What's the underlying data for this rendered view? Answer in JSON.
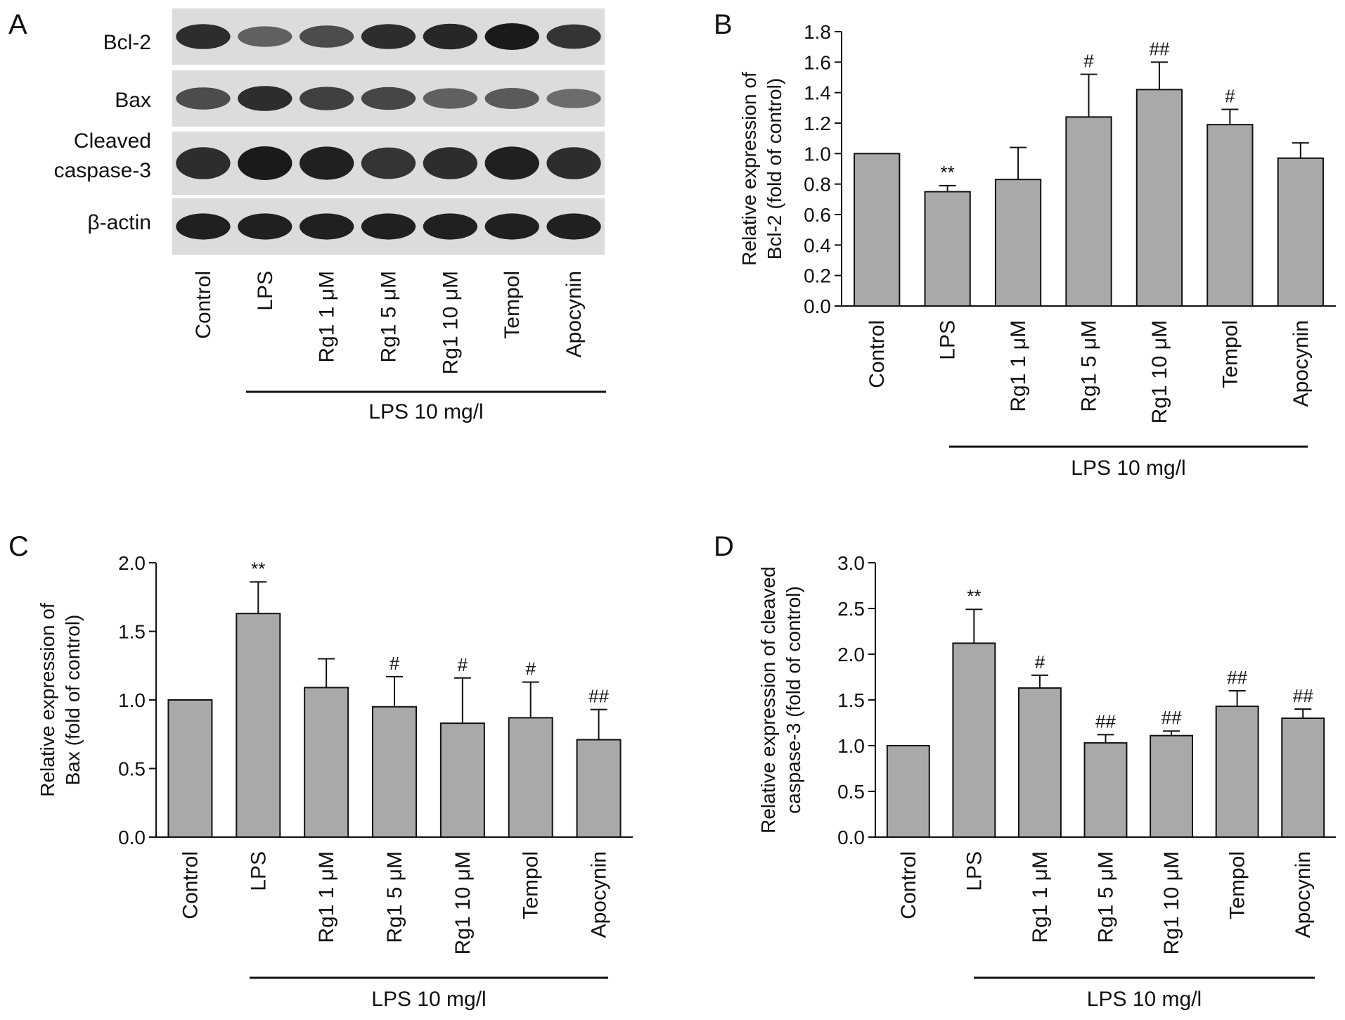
{
  "figure": {
    "colors": {
      "bar": "#a9a9a9",
      "ink": "#111111",
      "blot_bg": "#dcdcdc",
      "band": "#1a1a1a"
    }
  },
  "blot": {
    "panel_letter": "A",
    "row_labels": [
      [
        "Bcl-2"
      ],
      [
        "Bax"
      ],
      [
        "Cleaved",
        "caspase-3"
      ],
      [
        "β-actin"
      ]
    ],
    "lane_labels": [
      "Control",
      "LPS",
      "Rg1 1 μM",
      "Rg1 5 μM",
      "Rg1 10 μM",
      "Tempol",
      "Apocynin"
    ],
    "treatment_label": "LPS 10 mg/l",
    "band_intensity": [
      [
        0.85,
        0.45,
        0.6,
        0.85,
        0.9,
        1.0,
        0.8
      ],
      [
        0.6,
        0.85,
        0.7,
        0.65,
        0.45,
        0.5,
        0.35
      ],
      [
        0.85,
        1.0,
        0.95,
        0.8,
        0.85,
        0.95,
        0.85
      ],
      [
        0.95,
        0.95,
        0.95,
        0.95,
        0.95,
        0.95,
        0.95
      ]
    ]
  },
  "chart_data": [
    {
      "panel_letter": "B",
      "type": "bar",
      "categories": [
        "Control",
        "LPS",
        "Rg1 1 μM",
        "Rg1 5 μM",
        "Rg1 10 μM",
        "Tempol",
        "Apocynin"
      ],
      "values": [
        1.0,
        0.75,
        0.83,
        1.24,
        1.42,
        1.19,
        0.97
      ],
      "errors": [
        0,
        0.04,
        0.21,
        0.28,
        0.18,
        0.1,
        0.1
      ],
      "significance": [
        "",
        "**",
        "",
        "#",
        "##",
        "#",
        ""
      ],
      "ylabel": [
        "Relative expression of",
        "Bcl-2 (fold of control)"
      ],
      "ylim": [
        0,
        1.8
      ],
      "yticks": [
        "0.0",
        "0.2",
        "0.4",
        "0.6",
        "0.8",
        "1.0",
        "1.2",
        "1.4",
        "1.6",
        "1.8"
      ],
      "treatment_label": "LPS 10 mg/l",
      "grid": false
    },
    {
      "panel_letter": "C",
      "type": "bar",
      "categories": [
        "Control",
        "LPS",
        "Rg1 1 μM",
        "Rg1 5 μM",
        "Rg1 10 μM",
        "Tempol",
        "Apocynin"
      ],
      "values": [
        1.0,
        1.63,
        1.09,
        0.95,
        0.83,
        0.87,
        0.71
      ],
      "errors": [
        0,
        0.23,
        0.21,
        0.22,
        0.33,
        0.26,
        0.22
      ],
      "significance": [
        "",
        "**",
        "",
        "#",
        "#",
        "#",
        "##"
      ],
      "ylabel": [
        "Relative expression of",
        "Bax (fold of control)"
      ],
      "ylim": [
        0,
        2.0
      ],
      "yticks": [
        "0.0",
        "0.5",
        "1.0",
        "1.5",
        "2.0"
      ],
      "treatment_label": "LPS 10 mg/l",
      "grid": false
    },
    {
      "panel_letter": "D",
      "type": "bar",
      "categories": [
        "Control",
        "LPS",
        "Rg1 1 μM",
        "Rg1 5 μM",
        "Rg1 10 μM",
        "Tempol",
        "Apocynin"
      ],
      "values": [
        1.0,
        2.12,
        1.63,
        1.03,
        1.11,
        1.43,
        1.3
      ],
      "errors": [
        0,
        0.37,
        0.14,
        0.09,
        0.05,
        0.17,
        0.1
      ],
      "significance": [
        "",
        "**",
        "#",
        "##",
        "##",
        "##",
        "##"
      ],
      "ylabel": [
        "Relative expression of cleaved",
        "caspase-3 (fold of control)"
      ],
      "ylim": [
        0,
        3.0
      ],
      "yticks": [
        "0.0",
        "0.5",
        "1.0",
        "1.5",
        "2.0",
        "2.5",
        "3.0"
      ],
      "treatment_label": "LPS 10 mg/l",
      "grid": false
    }
  ]
}
